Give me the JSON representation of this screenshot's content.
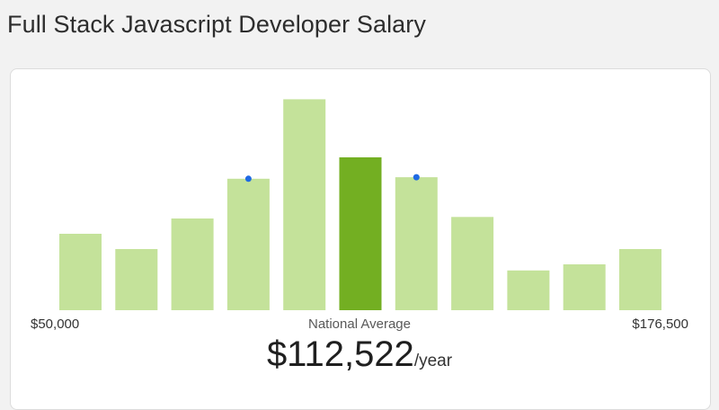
{
  "page": {
    "title": "Full Stack Javascript Developer Salary"
  },
  "chart_data": {
    "type": "bar",
    "values": [
      25,
      20,
      30,
      43,
      69,
      50,
      43.5,
      30.5,
      13,
      15,
      20
    ],
    "highlight_index": 5,
    "markers": [
      3,
      6
    ],
    "ylim": [
      0,
      70
    ],
    "x_min_label": "$50,000",
    "x_max_label": "$176,500",
    "x_mid_label": "National Average",
    "grid": false,
    "colors": {
      "bar": "#c4e29a",
      "highlight": "#73af22",
      "marker": "#1f6ae3"
    }
  },
  "salary": {
    "amount": "$112,522",
    "unit": "/year"
  }
}
